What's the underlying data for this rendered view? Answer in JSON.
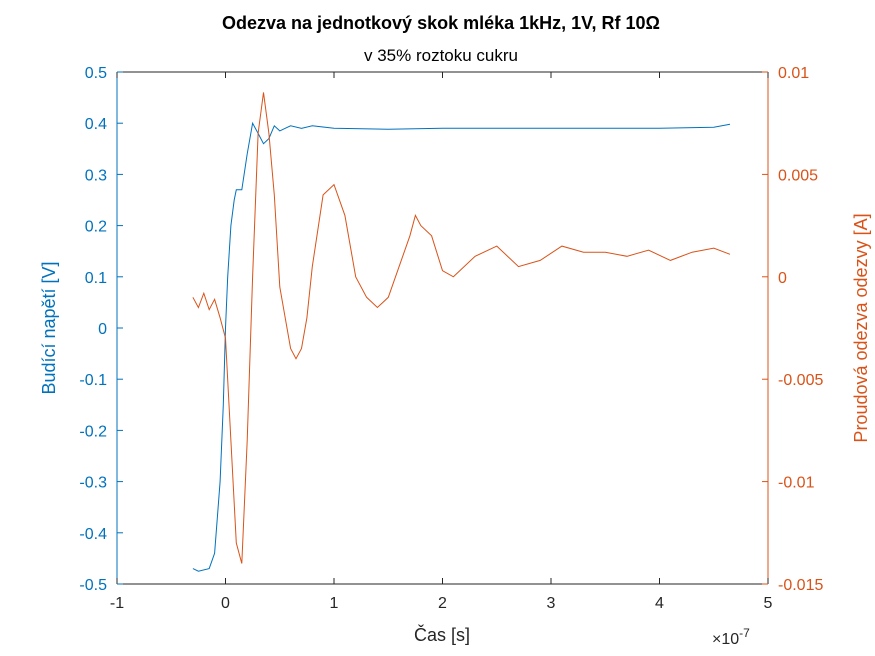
{
  "chart_data": {
    "type": "line",
    "title": "Odezva na jednotkový skok mléka 1kHz, 1V, Rf 10Ω",
    "subtitle": "v 35% roztoku cukru",
    "xlabel": "Čas [s]",
    "x_exponent_label": "×10",
    "x_exponent_power": "-7",
    "ylabel_left": "Budící napětí [V]",
    "ylabel_right": "Proudová odezva odezvy [A]",
    "xlim": [
      -1e-07,
      5e-07
    ],
    "ylim_left": [
      -0.5,
      0.5
    ],
    "ylim_right": [
      -0.015,
      0.01
    ],
    "grid": false,
    "legend": "none",
    "x_ticks": [
      -1,
      0,
      1,
      2,
      3,
      4,
      5
    ],
    "x_tick_labels": [
      "-1",
      "0",
      "1",
      "2",
      "3",
      "4",
      "5"
    ],
    "y_left_ticks": [
      -0.5,
      -0.4,
      -0.3,
      -0.2,
      -0.1,
      0,
      0.1,
      0.2,
      0.3,
      0.4,
      0.5
    ],
    "y_left_tick_labels": [
      "-0.5",
      "-0.4",
      "-0.3",
      "-0.2",
      "-0.1",
      "0",
      "0.1",
      "0.2",
      "0.3",
      "0.4",
      "0.5"
    ],
    "y_right_ticks": [
      -0.015,
      -0.01,
      -0.005,
      0,
      0.005,
      0.01
    ],
    "y_right_tick_labels": [
      "-0.015",
      "-0.01",
      "-0.005",
      "0",
      "0.005",
      "0.01"
    ],
    "colors": {
      "left": "#0072BD",
      "right": "#D95319",
      "axes": "#262626"
    },
    "series": [
      {
        "axis": "left",
        "x": [
          -3e-08,
          -2.5e-08,
          -1.5e-08,
          -1e-08,
          -5e-09,
          -2e-09,
          0,
          2e-09,
          5e-09,
          8e-09,
          1e-08,
          1.5e-08,
          2e-08,
          2.5e-08,
          3e-08,
          3.5e-08,
          4e-08,
          4.5e-08,
          5e-08,
          5.5e-08,
          6e-08,
          7e-08,
          8e-08,
          1e-07,
          1.5e-07,
          2e-07,
          2.5e-07,
          3e-07,
          3.5e-07,
          4e-07,
          4.5e-07,
          4.65e-07
        ],
        "y": [
          -0.47,
          -0.475,
          -0.47,
          -0.44,
          -0.3,
          -0.15,
          0.0,
          0.1,
          0.2,
          0.25,
          0.27,
          0.27,
          0.34,
          0.4,
          0.38,
          0.36,
          0.37,
          0.395,
          0.385,
          0.39,
          0.395,
          0.39,
          0.395,
          0.39,
          0.388,
          0.39,
          0.39,
          0.39,
          0.39,
          0.39,
          0.392,
          0.398
        ]
      },
      {
        "axis": "right",
        "x": [
          -3e-08,
          -2.5e-08,
          -2e-08,
          -1.5e-08,
          -1e-08,
          -5e-09,
          0,
          5e-09,
          1e-08,
          1.5e-08,
          2e-08,
          2.5e-08,
          3e-08,
          3.5e-08,
          4e-08,
          4.5e-08,
          5e-08,
          5.5e-08,
          6e-08,
          6.5e-08,
          7e-08,
          7.5e-08,
          8e-08,
          9e-08,
          1e-07,
          1.1e-07,
          1.2e-07,
          1.3e-07,
          1.4e-07,
          1.5e-07,
          1.6e-07,
          1.7e-07,
          1.75e-07,
          1.8e-07,
          1.9e-07,
          2e-07,
          2.1e-07,
          2.3e-07,
          2.5e-07,
          2.7e-07,
          2.9e-07,
          3.1e-07,
          3.3e-07,
          3.5e-07,
          3.7e-07,
          3.9e-07,
          4.1e-07,
          4.3e-07,
          4.5e-07,
          4.65e-07
        ],
        "y": [
          -0.001,
          -0.0015,
          -0.0008,
          -0.0016,
          -0.0011,
          -0.002,
          -0.003,
          -0.008,
          -0.013,
          -0.014,
          -0.008,
          0.0,
          0.007,
          0.009,
          0.007,
          0.004,
          -0.0005,
          -0.002,
          -0.0035,
          -0.004,
          -0.0035,
          -0.002,
          0.0005,
          0.004,
          0.0045,
          0.003,
          0.0,
          -0.001,
          -0.0015,
          -0.001,
          0.0005,
          0.002,
          0.003,
          0.0025,
          0.002,
          0.0003,
          0.0,
          0.001,
          0.0015,
          0.0005,
          0.0008,
          0.0015,
          0.0012,
          0.0012,
          0.001,
          0.0013,
          0.0008,
          0.0012,
          0.0014,
          0.0011
        ]
      }
    ]
  }
}
